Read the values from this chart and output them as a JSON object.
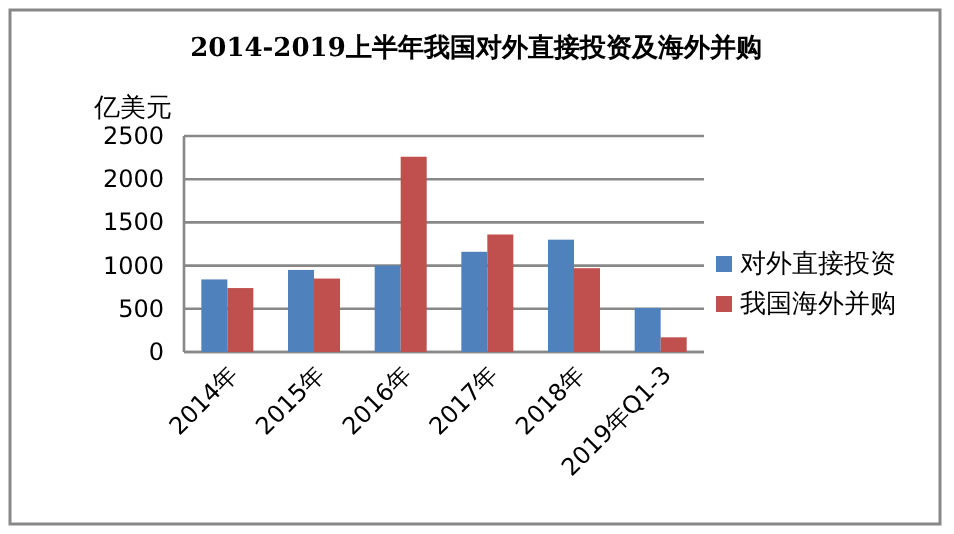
{
  "chart_data": {
    "type": "bar",
    "title": "2014-2019上半年我国对外直接投资及海外并购",
    "ylabel": "亿美元",
    "categories": [
      "2014年",
      "2015年",
      "2016年",
      "2017年",
      "2018年",
      "2019年Q1-3"
    ],
    "series": [
      {
        "name": "对外直接投资",
        "color": "#4f81bd",
        "values": [
          840,
          950,
          1000,
          1160,
          1300,
          510
        ]
      },
      {
        "name": "我国海外并购",
        "color": "#c0504d",
        "values": [
          740,
          850,
          2260,
          1360,
          970,
          170
        ]
      }
    ],
    "ylim": [
      0,
      2500
    ],
    "yticks": [
      0,
      500,
      1000,
      1500,
      2000,
      2500
    ],
    "grid": "y",
    "legend": "right"
  }
}
